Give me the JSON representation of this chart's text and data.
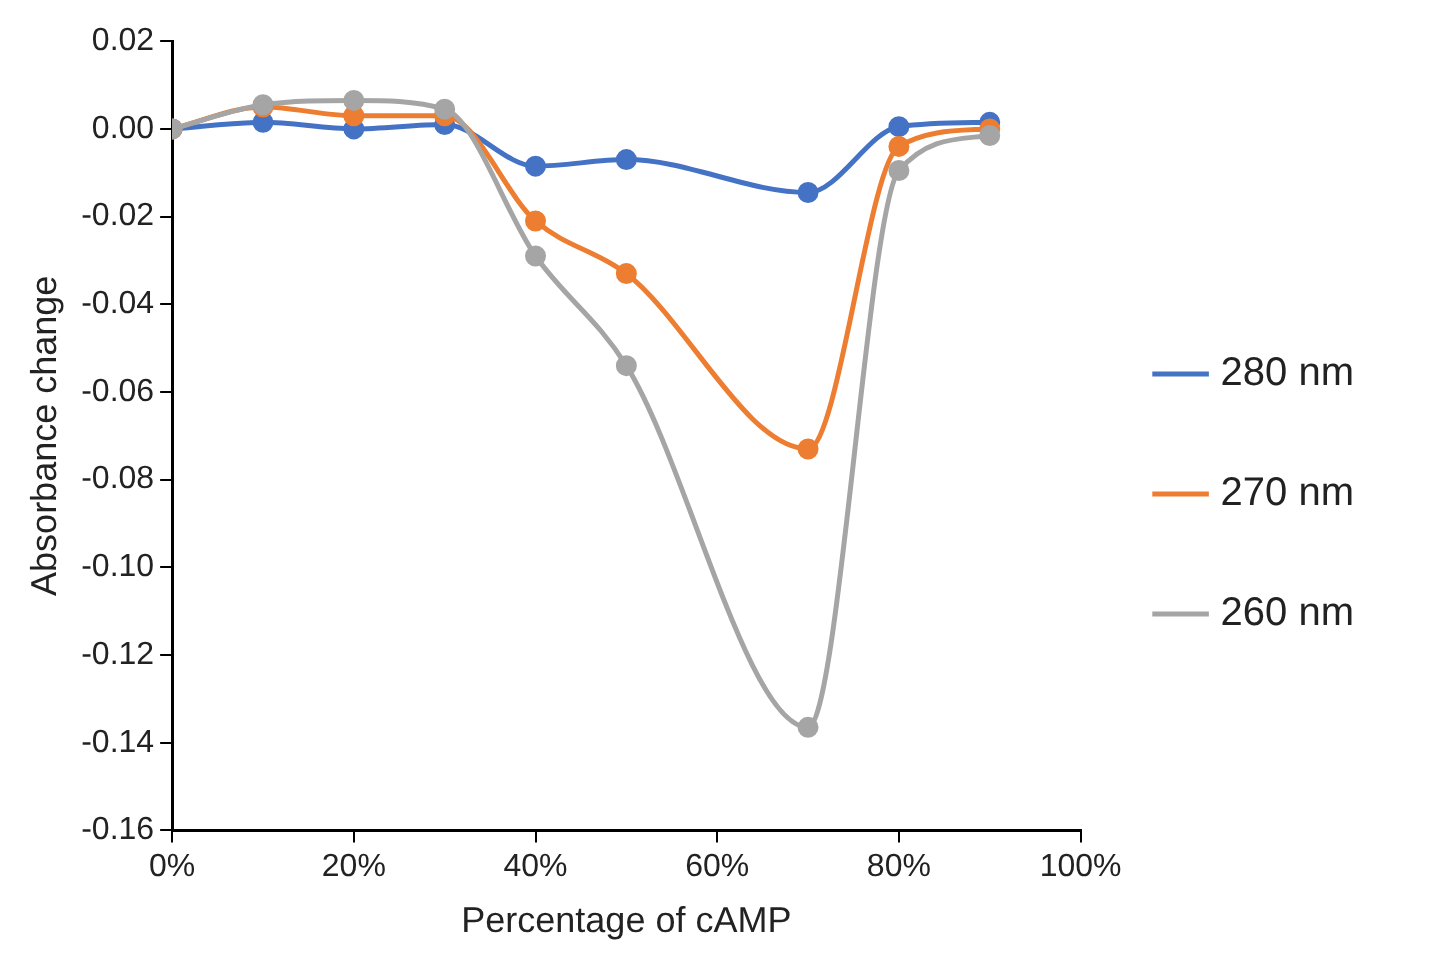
{
  "chart_data": {
    "type": "line",
    "xlabel": "Percentage of cAMP",
    "ylabel": "Absorbance change",
    "x": [
      0,
      10,
      20,
      30,
      40,
      50,
      70,
      80,
      90
    ],
    "series": [
      {
        "name": "280 nm",
        "color": "#4472c4",
        "values": [
          0,
          0.0015,
          0,
          0.001,
          -0.0085,
          -0.007,
          -0.0145,
          0.0005,
          0.0015
        ]
      },
      {
        "name": "270 nm",
        "color": "#ed7d31",
        "values": [
          0,
          0.005,
          0.003,
          0.003,
          -0.021,
          -0.033,
          -0.073,
          -0.004,
          0.0
        ]
      },
      {
        "name": "260 nm",
        "color": "#a5a5a5",
        "values": [
          0,
          0.0055,
          0.0065,
          0.0045,
          -0.029,
          -0.054,
          -0.1365,
          -0.0095,
          -0.0015
        ]
      }
    ],
    "xlim": [
      0,
      100
    ],
    "xticks": [
      {
        "value": 0,
        "label": "0%"
      },
      {
        "value": 20,
        "label": "20%"
      },
      {
        "value": 40,
        "label": "40%"
      },
      {
        "value": 60,
        "label": "60%"
      },
      {
        "value": 80,
        "label": "80%"
      },
      {
        "value": 100,
        "label": "100%"
      }
    ],
    "ylim": [
      -0.16,
      0.02
    ],
    "yticks": [
      {
        "value": -0.16,
        "label": "-0.16"
      },
      {
        "value": -0.14,
        "label": "-0.14"
      },
      {
        "value": -0.12,
        "label": "-0.12"
      },
      {
        "value": -0.1,
        "label": "-0.10"
      },
      {
        "value": -0.08,
        "label": "-0.08"
      },
      {
        "value": -0.06,
        "label": "-0.06"
      },
      {
        "value": -0.04,
        "label": "-0.04"
      },
      {
        "value": -0.02,
        "label": "-0.02"
      },
      {
        "value": 0,
        "label": "0.00"
      },
      {
        "value": 0.02,
        "label": "0.02"
      }
    ],
    "grid": false,
    "legend": "right",
    "marker": "circle",
    "line_style": "solid"
  }
}
